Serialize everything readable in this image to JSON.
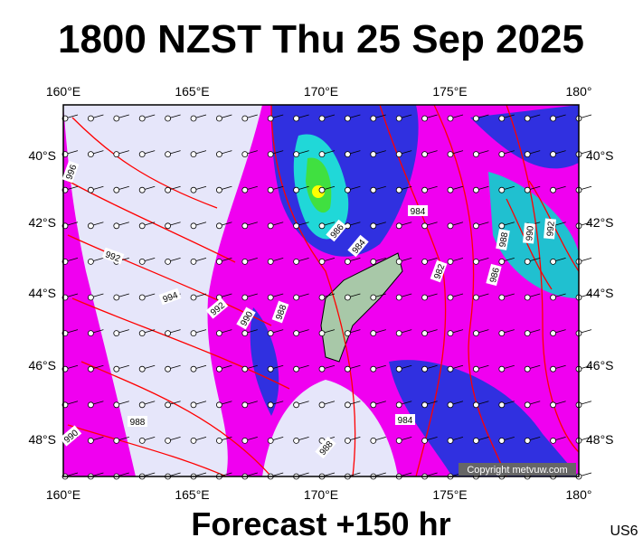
{
  "header": {
    "title": "1800 NZST Thu 25 Sep 2025"
  },
  "axes": {
    "lon_labels": [
      "160°E",
      "165°E",
      "170°E",
      "175°E",
      "180°"
    ],
    "lat_labels": [
      "40°S",
      "42°S",
      "44°S",
      "46°S",
      "48°S"
    ]
  },
  "contour_labels": [
    "996",
    "992",
    "994",
    "992",
    "990",
    "988",
    "986",
    "984",
    "984",
    "982",
    "986",
    "988",
    "990",
    "992",
    "988",
    "990",
    "988",
    "984"
  ],
  "copyright": "Copyright metvuw.com",
  "footer": {
    "forecast": "Forecast +150 hr",
    "region": "US6"
  }
}
